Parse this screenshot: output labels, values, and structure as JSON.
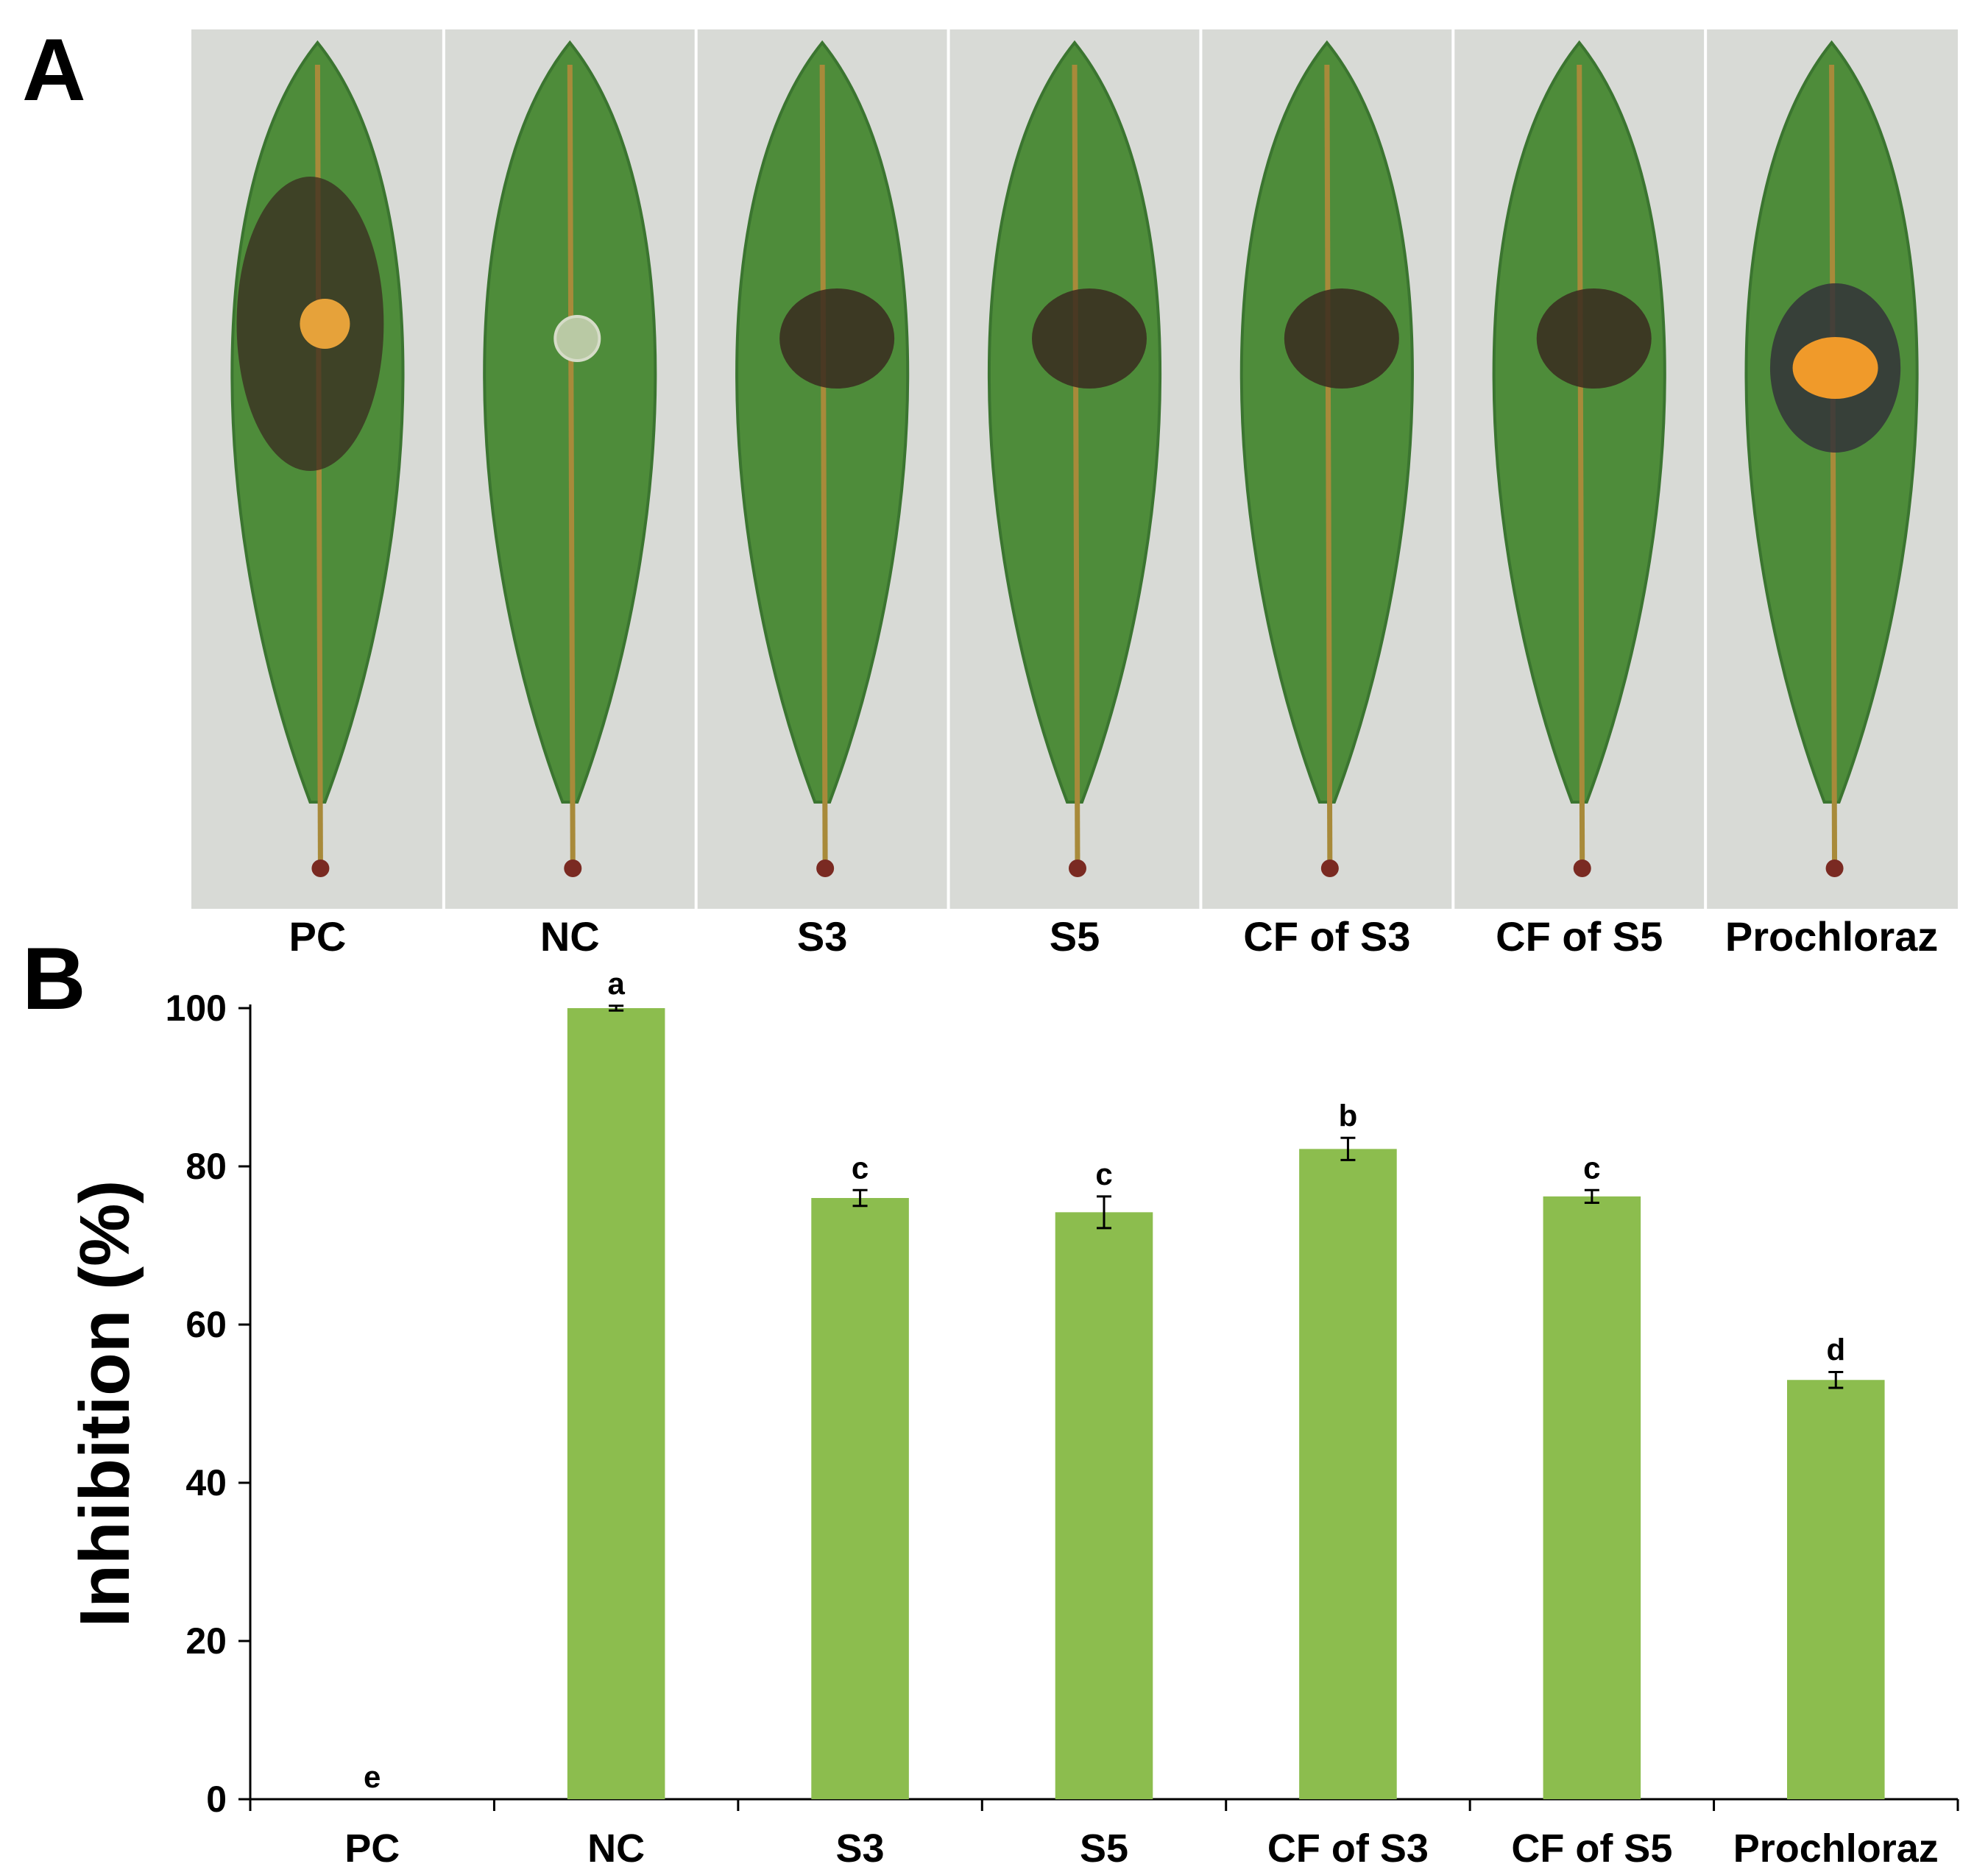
{
  "panelA": {
    "letter": "A",
    "leaves": [
      {
        "label": "PC",
        "lesion": "large"
      },
      {
        "label": "NC",
        "lesion": "none"
      },
      {
        "label": "S3",
        "lesion": "small"
      },
      {
        "label": "S5",
        "lesion": "small"
      },
      {
        "label": "CF of S3",
        "lesion": "small"
      },
      {
        "label": "CF of S5",
        "lesion": "small"
      },
      {
        "label": "Prochloraz",
        "lesion": "medium"
      }
    ]
  },
  "panelB": {
    "letter": "B"
  },
  "colors": {
    "bar": "#8cbd4e",
    "leaf": "#4e8c3a",
    "leafDark": "#3b7530",
    "vein": "#a88a3a",
    "lesion": "#3a2a20",
    "photoBg": "#d8dad6"
  },
  "chart_data": {
    "type": "bar",
    "categories": [
      "PC",
      "NC",
      "S3",
      "S5",
      "CF of S3",
      "CF of S5",
      "Prochloraz"
    ],
    "values": [
      0,
      100,
      76,
      74.2,
      82.2,
      76.2,
      53
    ],
    "errors": [
      0,
      0.3,
      1.0,
      2.0,
      1.4,
      0.8,
      1.0
    ],
    "significance_letters": [
      "e",
      "a",
      "c",
      "c",
      "b",
      "c",
      "d"
    ],
    "ylabel": "Inhibition (%)",
    "xlabel": "",
    "ylim": [
      0,
      100
    ],
    "yticks": [
      0,
      20,
      40,
      60,
      80,
      100
    ],
    "grid": false
  }
}
